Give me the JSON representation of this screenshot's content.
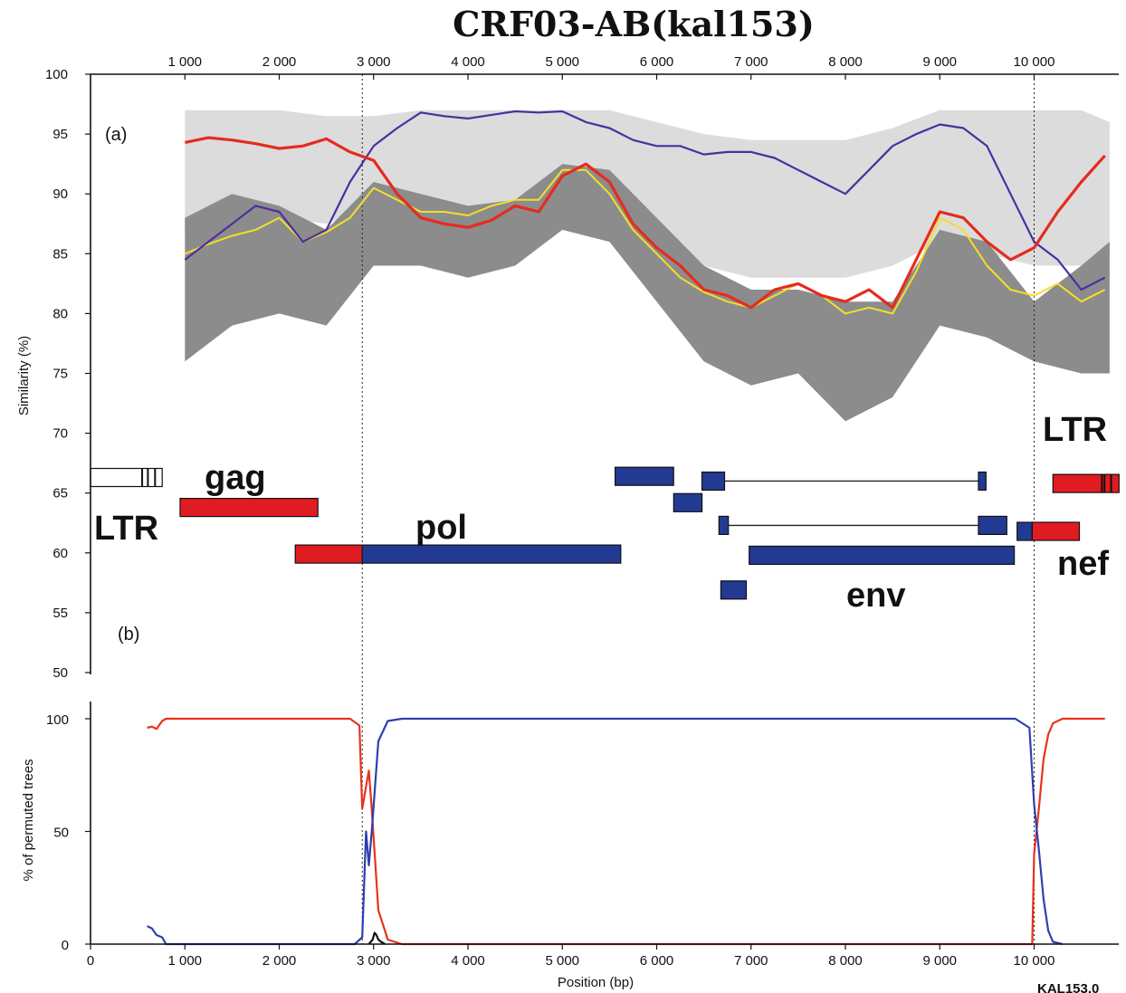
{
  "colors": {
    "ref_light": "#dcdcdc",
    "ref_dark": "#8c8c8c",
    "subtype_a": "#e52b1f",
    "subtype_b": "#4b2fa0",
    "yellow_series": "#f2df2a",
    "gene_red": "#e11b22",
    "gene_blue": "#233a93",
    "gene_white": "#ffffff",
    "bootscan_red": "#e8321f",
    "bootscan_blue": "#2f3fb0",
    "bootscan_black": "#111111"
  },
  "chart_data": [
    {
      "type": "line",
      "title": "CRF03-AB(kal153)",
      "panel_label": "(a)",
      "xlabel": "",
      "ylabel": "Similarity (%)",
      "xlim": [
        0,
        10900
      ],
      "ylim": [
        50,
        100
      ],
      "x_ticks": [
        1000,
        2000,
        3000,
        4000,
        5000,
        6000,
        7000,
        8000,
        9000,
        10000
      ],
      "x_tick_labels": [
        "1 000",
        "2 000",
        "3 000",
        "4 000",
        "5 000",
        "6 000",
        "7 000",
        "8 000",
        "9 000",
        "10 000"
      ],
      "y_ticks": [
        50,
        55,
        60,
        65,
        70,
        75,
        80,
        85,
        90,
        95,
        100
      ],
      "y_tick_labels": [
        "50",
        "55",
        "60",
        "65",
        "70",
        "75",
        "80",
        "85",
        "90",
        "95",
        "100"
      ],
      "breakpoints": [
        2880,
        10000
      ],
      "reference_bands": {
        "light": {
          "x": [
            1000,
            1500,
            2000,
            2500,
            3000,
            3500,
            4000,
            4500,
            5000,
            5500,
            6000,
            6500,
            7000,
            7500,
            8000,
            8500,
            9000,
            9500,
            10000,
            10500,
            10800
          ],
          "upper": [
            97,
            97,
            97,
            96.5,
            96.5,
            97,
            97,
            97,
            97,
            97,
            96,
            95,
            94.5,
            94.5,
            94.5,
            95.5,
            97,
            97,
            97,
            97,
            96
          ],
          "lower": [
            87,
            87,
            88,
            87.5,
            89,
            89,
            88,
            88.5,
            90,
            89,
            86,
            84,
            83,
            83,
            83,
            84,
            86,
            85,
            84,
            84,
            85
          ]
        },
        "dark": {
          "x": [
            1000,
            1500,
            2000,
            2500,
            3000,
            3500,
            4000,
            4500,
            5000,
            5500,
            6000,
            6500,
            7000,
            7500,
            8000,
            8500,
            9000,
            9500,
            10000,
            10500,
            10800
          ],
          "upper": [
            88,
            90,
            89,
            87,
            91,
            90,
            89,
            89.5,
            92.5,
            92,
            88,
            84,
            82,
            82,
            81,
            81,
            87,
            86,
            81,
            84,
            86
          ],
          "lower": [
            76,
            79,
            80,
            79,
            84,
            84,
            83,
            84,
            87,
            86,
            81,
            76,
            74,
            75,
            71,
            73,
            79,
            78,
            76,
            75,
            75
          ]
        }
      },
      "series": [
        {
          "color_key": "subtype_a",
          "x": [
            1000,
            1250,
            1500,
            1750,
            2000,
            2250,
            2500,
            2750,
            3000,
            3250,
            3500,
            3750,
            4000,
            4250,
            4500,
            4750,
            5000,
            5250,
            5500,
            5750,
            6000,
            6250,
            6500,
            6750,
            7000,
            7250,
            7500,
            7750,
            8000,
            8250,
            8500,
            8750,
            9000,
            9250,
            9500,
            9750,
            10000,
            10250,
            10500,
            10750
          ],
          "y": [
            94.3,
            94.7,
            94.5,
            94.2,
            93.8,
            94.0,
            94.6,
            93.5,
            92.8,
            90.0,
            88.0,
            87.5,
            87.2,
            87.8,
            89.0,
            88.5,
            91.5,
            92.5,
            91.0,
            87.5,
            85.5,
            84.0,
            82.0,
            81.5,
            80.5,
            82.0,
            82.5,
            81.5,
            81.0,
            82.0,
            80.5,
            84.5,
            88.5,
            88.0,
            86.0,
            84.5,
            85.5,
            88.5,
            91.0,
            93.2
          ]
        },
        {
          "color_key": "subtype_b",
          "x": [
            1000,
            1250,
            1500,
            1750,
            2000,
            2250,
            2500,
            2750,
            3000,
            3250,
            3500,
            3750,
            4000,
            4250,
            4500,
            4750,
            5000,
            5250,
            5500,
            5750,
            6000,
            6250,
            6500,
            6750,
            7000,
            7250,
            7500,
            7750,
            8000,
            8250,
            8500,
            8750,
            9000,
            9250,
            9500,
            9750,
            10000,
            10250,
            10500,
            10750
          ],
          "y": [
            84.5,
            86.0,
            87.5,
            89.0,
            88.5,
            86.0,
            87.0,
            91.0,
            94.0,
            95.5,
            96.8,
            96.5,
            96.3,
            96.6,
            96.9,
            96.8,
            96.9,
            96.0,
            95.5,
            94.5,
            94.0,
            94.0,
            93.3,
            93.5,
            93.5,
            93.0,
            92.0,
            91.0,
            90.0,
            92.0,
            94.0,
            95.0,
            95.8,
            95.5,
            94.0,
            90.0,
            86.0,
            84.5,
            82.0,
            83.0
          ]
        },
        {
          "color_key": "yellow_series",
          "x": [
            1000,
            1250,
            1500,
            1750,
            2000,
            2250,
            2500,
            2750,
            3000,
            3250,
            3500,
            3750,
            4000,
            4250,
            4500,
            4750,
            5000,
            5250,
            5500,
            5750,
            6000,
            6250,
            6500,
            6750,
            7000,
            7250,
            7500,
            7750,
            8000,
            8250,
            8500,
            8750,
            9000,
            9250,
            9500,
            9750,
            10000,
            10250,
            10500,
            10750
          ],
          "y": [
            85.0,
            85.8,
            86.5,
            87.0,
            88.0,
            86.0,
            86.8,
            88.0,
            90.5,
            89.5,
            88.5,
            88.5,
            88.2,
            89.0,
            89.5,
            89.5,
            92.0,
            92.0,
            90.0,
            87.0,
            85.0,
            83.0,
            81.8,
            81.0,
            80.5,
            81.5,
            82.5,
            81.5,
            80.0,
            80.5,
            80.0,
            83.5,
            88.0,
            87.0,
            84.0,
            82.0,
            81.5,
            82.5,
            81.0,
            82.0
          ]
        }
      ]
    },
    {
      "type": "line",
      "panel_label": "(b)",
      "xlabel": "Position (bp)",
      "ylabel": "% of permuted trees",
      "xlim": [
        0,
        10900
      ],
      "ylim": [
        0,
        100
      ],
      "x_ticks": [
        0,
        1000,
        2000,
        3000,
        4000,
        5000,
        6000,
        7000,
        8000,
        9000,
        10000
      ],
      "x_tick_labels": [
        "0",
        "1 000",
        "2 000",
        "3 000",
        "4 000",
        "5 000",
        "6 000",
        "7 000",
        "8 000",
        "9 000",
        "10 000"
      ],
      "y_ticks": [
        0,
        50,
        100
      ],
      "y_tick_labels": [
        "0",
        "50",
        "100"
      ],
      "series": [
        {
          "color_key": "bootscan_red",
          "x": [
            600,
            650,
            700,
            760,
            800,
            900,
            1000,
            2000,
            2750,
            2850,
            2880,
            2920,
            2950,
            2980,
            3050,
            3150,
            3300,
            9980,
            10000,
            10050,
            10100,
            10150,
            10200,
            10300,
            10400,
            10750
          ],
          "y": [
            96,
            96.5,
            95.5,
            99,
            100,
            100,
            100,
            100,
            100,
            97,
            60,
            70,
            77,
            60,
            15,
            2,
            0,
            0,
            40,
            60,
            82,
            93,
            98,
            100,
            100,
            100
          ]
        },
        {
          "color_key": "bootscan_blue",
          "x": [
            600,
            650,
            700,
            760,
            800,
            900,
            2800,
            2880,
            2920,
            2950,
            2980,
            3050,
            3150,
            3300,
            9800,
            9950,
            10000,
            10050,
            10100,
            10150,
            10200,
            10300
          ],
          "y": [
            8,
            7,
            4,
            3,
            0,
            0,
            0,
            3,
            50,
            35,
            50,
            90,
            99,
            100,
            100,
            96,
            62,
            42,
            20,
            6,
            1,
            0
          ]
        },
        {
          "color_key": "bootscan_black",
          "x": [
            2950,
            2990,
            3010,
            3030,
            3050,
            3080,
            3120
          ],
          "y": [
            0,
            2,
            5,
            4,
            2,
            1,
            0
          ]
        }
      ]
    },
    {
      "type": "gene-map",
      "labels": [
        {
          "text": "gag"
        },
        {
          "text": "pol"
        },
        {
          "text": "env"
        },
        {
          "text": "LTR"
        },
        {
          "text": "LTR"
        },
        {
          "text": "nef"
        }
      ],
      "segments": [
        {
          "name": "ltr-5-open",
          "color_key": "gene_white",
          "x_start": 0,
          "x_end": 760,
          "level": 66.3
        },
        {
          "name": "gag",
          "color_key": "gene_red",
          "x_start": 950,
          "x_end": 2410,
          "level": 63.8
        },
        {
          "name": "pol-red",
          "color_key": "gene_red",
          "x_start": 2170,
          "x_end": 2880,
          "level": 59.9
        },
        {
          "name": "pol-blue",
          "color_key": "gene_blue",
          "x_start": 2880,
          "x_end": 5620,
          "level": 59.9
        },
        {
          "name": "vif",
          "color_key": "gene_blue",
          "x_start": 5560,
          "x_end": 6180,
          "level": 66.4
        },
        {
          "name": "vpr",
          "color_key": "gene_blue",
          "x_start": 6180,
          "x_end": 6480,
          "level": 64.2
        },
        {
          "name": "tat-exon1",
          "color_key": "gene_blue",
          "x_start": 6480,
          "x_end": 6720,
          "level": 66.0
        },
        {
          "name": "tat-exon2",
          "color_key": "gene_blue",
          "x_start": 9410,
          "x_end": 9490,
          "level": 66.0
        },
        {
          "name": "rev-exon1",
          "color_key": "gene_blue",
          "x_start": 6660,
          "x_end": 6760,
          "level": 62.3
        },
        {
          "name": "rev-exon2",
          "color_key": "gene_blue",
          "x_start": 9410,
          "x_end": 9710,
          "level": 62.3
        },
        {
          "name": "vpu",
          "color_key": "gene_blue",
          "x_start": 6680,
          "x_end": 6950,
          "level": 56.9
        },
        {
          "name": "env",
          "color_key": "gene_blue",
          "x_start": 6980,
          "x_end": 9790,
          "level": 59.8
        },
        {
          "name": "nef-blue",
          "color_key": "gene_blue",
          "x_start": 9820,
          "x_end": 9980,
          "level": 61.8
        },
        {
          "name": "nef-red",
          "color_key": "gene_red",
          "x_start": 9980,
          "x_end": 10480,
          "level": 61.8
        },
        {
          "name": "ltr-3",
          "color_key": "gene_red",
          "x_start": 10200,
          "x_end": 10900,
          "level": 65.8
        }
      ],
      "introns": [
        {
          "x_start": 6720,
          "x_end": 9410,
          "level": 66.0
        },
        {
          "x_start": 6760,
          "x_end": 9410,
          "level": 62.3
        }
      ]
    }
  ],
  "corner_text": "KAL153.0"
}
